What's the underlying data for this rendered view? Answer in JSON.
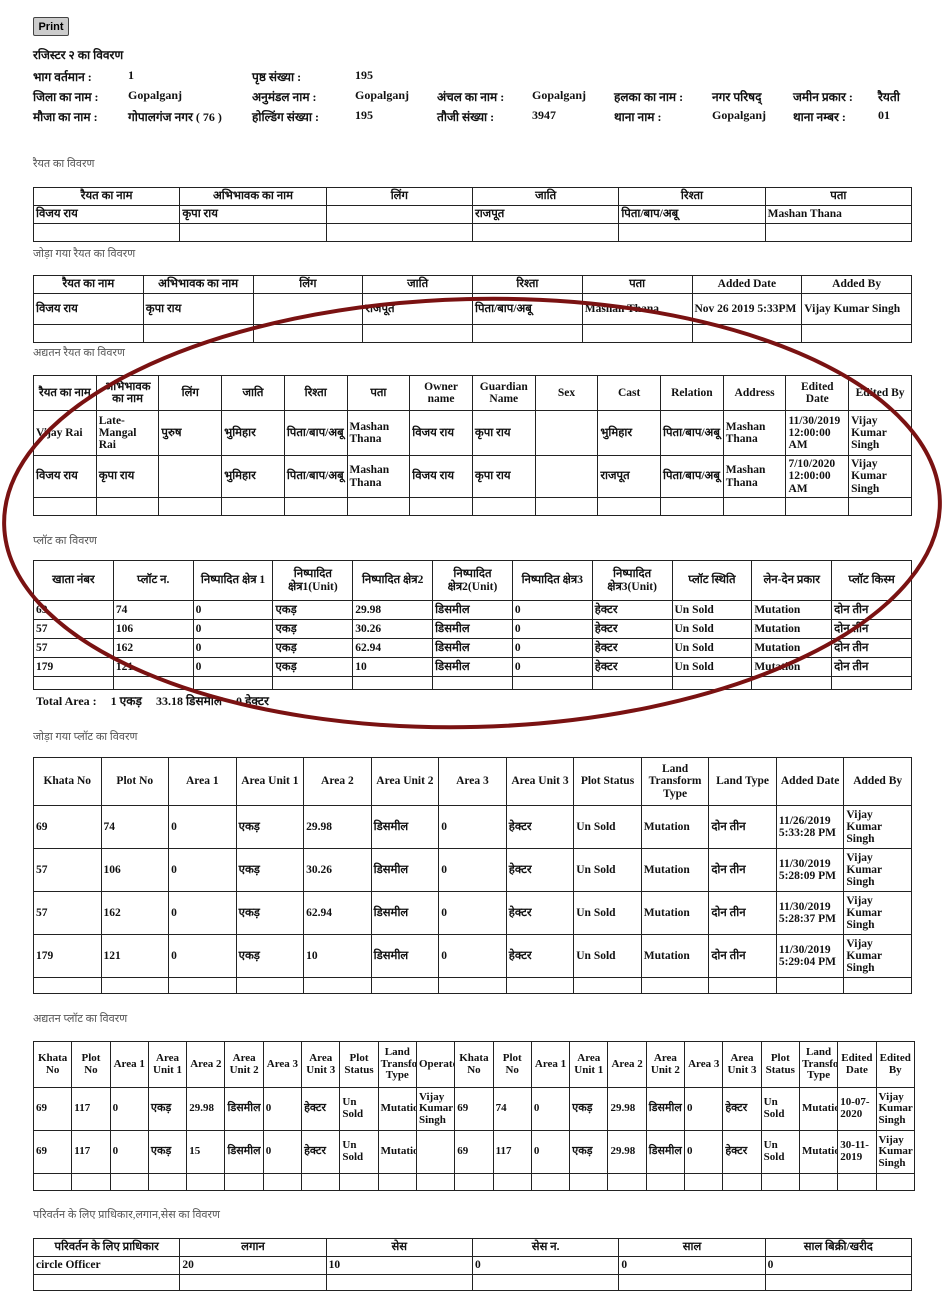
{
  "print_label": "Print",
  "title": "रजिस्टर २ का विवरण",
  "info": {
    "bhag_label": "भाग वर्तमान :",
    "bhag": "1",
    "page_label": "पृष्ठ संख्या :",
    "page": "195",
    "district_label": "जिला का नाम :",
    "district": "Gopalganj",
    "subdiv_label": "अनुमंडल नाम :",
    "subdiv": "Gopalganj",
    "anchal_label": "अंचल का नाम :",
    "anchal": "Gopalganj",
    "halka_label": "हलका का नाम :",
    "halka": "नगर परिषद्",
    "landtype_label": "जमीन प्रकार :",
    "landtype": "रैयती",
    "mauja_label": "मौजा का नाम :",
    "mauja": "गोपालगंज नगर ( 76 )",
    "holding_label": "होल्डिंग संख्या :",
    "holding": "195",
    "touzi_label": "तौजी संख्या :",
    "touzi": "3947",
    "thana_label": "थाना नाम :",
    "thana": "Gopalganj",
    "thana_no_label": "थाना नम्बर :",
    "thana_no": "01"
  },
  "sections": {
    "raiyat": "रैयत का विवरण",
    "added_raiyat": "जोड़ा गया रैयत का विवरण",
    "updated_raiyat": "अद्यतन रैयत का विवरण",
    "plot": "प्लॉट का विवरण",
    "added_plot": "जोड़ा गया प्लॉट का विवरण",
    "updated_plot": "अद्यतन प्लॉट का विवरण",
    "authority": "परिवर्तन के लिए प्राधिकार,लगान,सेस का विवरण"
  },
  "total_area": {
    "label": "Total Area :",
    "acre": "1 एकड़",
    "decimal": "33.18 डिसमील",
    "hectare": "0 हेक्टर"
  },
  "tables": {
    "raiyat": {
      "headers": [
        "रैयत का नाम",
        "अभिभावक का नाम",
        "लिंग",
        "जाति",
        "रिश्ता",
        "पता"
      ],
      "rows": [
        [
          "विजय राय",
          "कृपा राय",
          "",
          "राजपूत",
          "पिता/बाप/अबू",
          "Mashan Thana"
        ],
        [
          "",
          "",
          "",
          "",
          "",
          ""
        ]
      ]
    },
    "added_raiyat": {
      "headers": [
        "रैयत का नाम",
        "अभिभावक का नाम",
        "लिंग",
        "जाति",
        "रिश्ता",
        "पता",
        "Added Date",
        "Added By"
      ],
      "rows": [
        [
          "विजय राय",
          "कृपा राय",
          "",
          "राजपूत",
          "पिता/बाप/अबू",
          "Mashan Thana",
          "Nov 26 2019 5:33PM",
          "Vijay Kumar Singh"
        ],
        [
          "",
          "",
          "",
          "",
          "",
          "",
          "",
          ""
        ]
      ]
    },
    "updated_raiyat": {
      "headers": [
        "रैयत का नाम",
        "अभिभावक का नाम",
        "लिंग",
        "जाति",
        "रिश्ता",
        "पता",
        "Owner name",
        "Guardian Name",
        "Sex",
        "Cast",
        "Relation",
        "Address",
        "Edited Date",
        "Edited By"
      ],
      "rows": [
        [
          "Vijay Rai",
          "Late-Mangal Rai",
          "पुरुष",
          "भुमिहार",
          "पिता/बाप/अबू",
          "Mashan Thana",
          "विजय राय",
          "कृपा राय",
          "",
          "भुमिहार",
          "पिता/बाप/अबू",
          "Mashan Thana",
          "11/30/2019 12:00:00 AM",
          "Vijay Kumar Singh"
        ],
        [
          "विजय राय",
          "कृपा राय",
          "",
          "भुमिहार",
          "पिता/बाप/अबू",
          "Mashan Thana",
          "विजय राय",
          "कृपा राय",
          "",
          "राजपूत",
          "पिता/बाप/अबू",
          "Mashan Thana",
          "7/10/2020 12:00:00 AM",
          "Vijay Kumar Singh"
        ],
        [
          "",
          "",
          "",
          "",
          "",
          "",
          "",
          "",
          "",
          "",
          "",
          "",
          "",
          ""
        ]
      ]
    },
    "plot": {
      "headers": [
        "खाता नंबर",
        "प्लॉट न.",
        "निष्पादित क्षेत्र 1",
        "निष्पादित क्षेत्र1(Unit)",
        "निष्पादित क्षेत्र2",
        "निष्पादित क्षेत्र2(Unit)",
        "निष्पादित क्षेत्र3",
        "निष्पादित क्षेत्र3(Unit)",
        "प्लॉट स्थिति",
        "लेन-देन प्रकार",
        "प्लॉट किस्म"
      ],
      "rows": [
        [
          "69",
          "74",
          "0",
          "एकड़",
          "29.98",
          "डिसमील",
          "0",
          "हेक्टर",
          "Un Sold",
          "Mutation",
          "दोन तीन"
        ],
        [
          "57",
          "106",
          "0",
          "एकड़",
          "30.26",
          "डिसमील",
          "0",
          "हेक्टर",
          "Un Sold",
          "Mutation",
          "दोन तीन"
        ],
        [
          "57",
          "162",
          "0",
          "एकड़",
          "62.94",
          "डिसमील",
          "0",
          "हेक्टर",
          "Un Sold",
          "Mutation",
          "दोन तीन"
        ],
        [
          "179",
          "121",
          "0",
          "एकड़",
          "10",
          "डिसमील",
          "0",
          "हेक्टर",
          "Un Sold",
          "Mutation",
          "दोन तीन"
        ],
        [
          "",
          "",
          "",
          "",
          "",
          "",
          "",
          "",
          "",
          "",
          ""
        ]
      ]
    },
    "added_plot": {
      "headers": [
        "Khata No",
        "Plot No",
        "Area 1",
        "Area Unit 1",
        "Area 2",
        "Area Unit 2",
        "Area 3",
        "Area Unit 3",
        "Plot Status",
        "Land Transform Type",
        "Land Type",
        "Added Date",
        "Added By"
      ],
      "rows": [
        [
          "69",
          "74",
          "0",
          "एकड़",
          "29.98",
          "डिसमील",
          "0",
          "हेक्टर",
          "Un Sold",
          "Mutation",
          "दोन तीन",
          "11/26/2019 5:33:28 PM",
          "Vijay Kumar Singh"
        ],
        [
          "57",
          "106",
          "0",
          "एकड़",
          "30.26",
          "डिसमील",
          "0",
          "हेक्टर",
          "Un Sold",
          "Mutation",
          "दोन तीन",
          "11/30/2019 5:28:09 PM",
          "Vijay Kumar Singh"
        ],
        [
          "57",
          "162",
          "0",
          "एकड़",
          "62.94",
          "डिसमील",
          "0",
          "हेक्टर",
          "Un Sold",
          "Mutation",
          "दोन तीन",
          "11/30/2019 5:28:37 PM",
          "Vijay Kumar Singh"
        ],
        [
          "179",
          "121",
          "0",
          "एकड़",
          "10",
          "डिसमील",
          "0",
          "हेक्टर",
          "Un Sold",
          "Mutation",
          "दोन तीन",
          "11/30/2019 5:29:04 PM",
          "Vijay Kumar Singh"
        ],
        [
          "",
          "",
          "",
          "",
          "",
          "",
          "",
          "",
          "",
          "",
          "",
          "",
          ""
        ]
      ]
    },
    "updated_plot": {
      "headers": [
        "Khata No",
        "Plot No",
        "Area 1",
        "Area Unit 1",
        "Area 2",
        "Area Unit 2",
        "Area 3",
        "Area Unit 3",
        "Plot Status",
        "Land Transform Type",
        "Operator",
        "Khata No",
        "Plot No",
        "Area 1",
        "Area Unit 1",
        "Area 2",
        "Area Unit 2",
        "Area 3",
        "Area Unit 3",
        "Plot Status",
        "Land Transform Type",
        "Edited Date",
        "Edited By"
      ],
      "rows": [
        [
          "69",
          "117",
          "0",
          "एकड़",
          "29.98",
          "डिसमील",
          "0",
          "हेक्टर",
          "Un Sold",
          "Mutation",
          "Vijay Kumar Singh",
          "69",
          "74",
          "0",
          "एकड़",
          "29.98",
          "डिसमील",
          "0",
          "हेक्टर",
          "Un Sold",
          "Mutation",
          "10-07-2020",
          "Vijay Kumar Singh"
        ],
        [
          "69",
          "117",
          "0",
          "एकड़",
          "15",
          "डिसमील",
          "0",
          "हेक्टर",
          "Un Sold",
          "Mutation",
          "",
          "69",
          "117",
          "0",
          "एकड़",
          "29.98",
          "डिसमील",
          "0",
          "हेक्टर",
          "Un Sold",
          "Mutation",
          "30-11-2019",
          "Vijay Kumar Singh"
        ],
        [
          "",
          "",
          "",
          "",
          "",
          "",
          "",
          "",
          "",
          "",
          "",
          "",
          "",
          "",
          "",
          "",
          "",
          "",
          "",
          "",
          "",
          "",
          ""
        ]
      ]
    },
    "authority": {
      "headers": [
        "परिवर्तन के लिए प्राधिकार",
        "लगान",
        "सेस",
        "सेस न.",
        "साल",
        "साल बिक्री/खरीद"
      ],
      "rows": [
        [
          "circle Officer",
          "20",
          "10",
          "0",
          "0",
          "0"
        ],
        [
          "",
          "",
          "",
          "",
          "",
          ""
        ]
      ]
    }
  },
  "colors": {
    "annotation_circle": "#7a1212"
  }
}
